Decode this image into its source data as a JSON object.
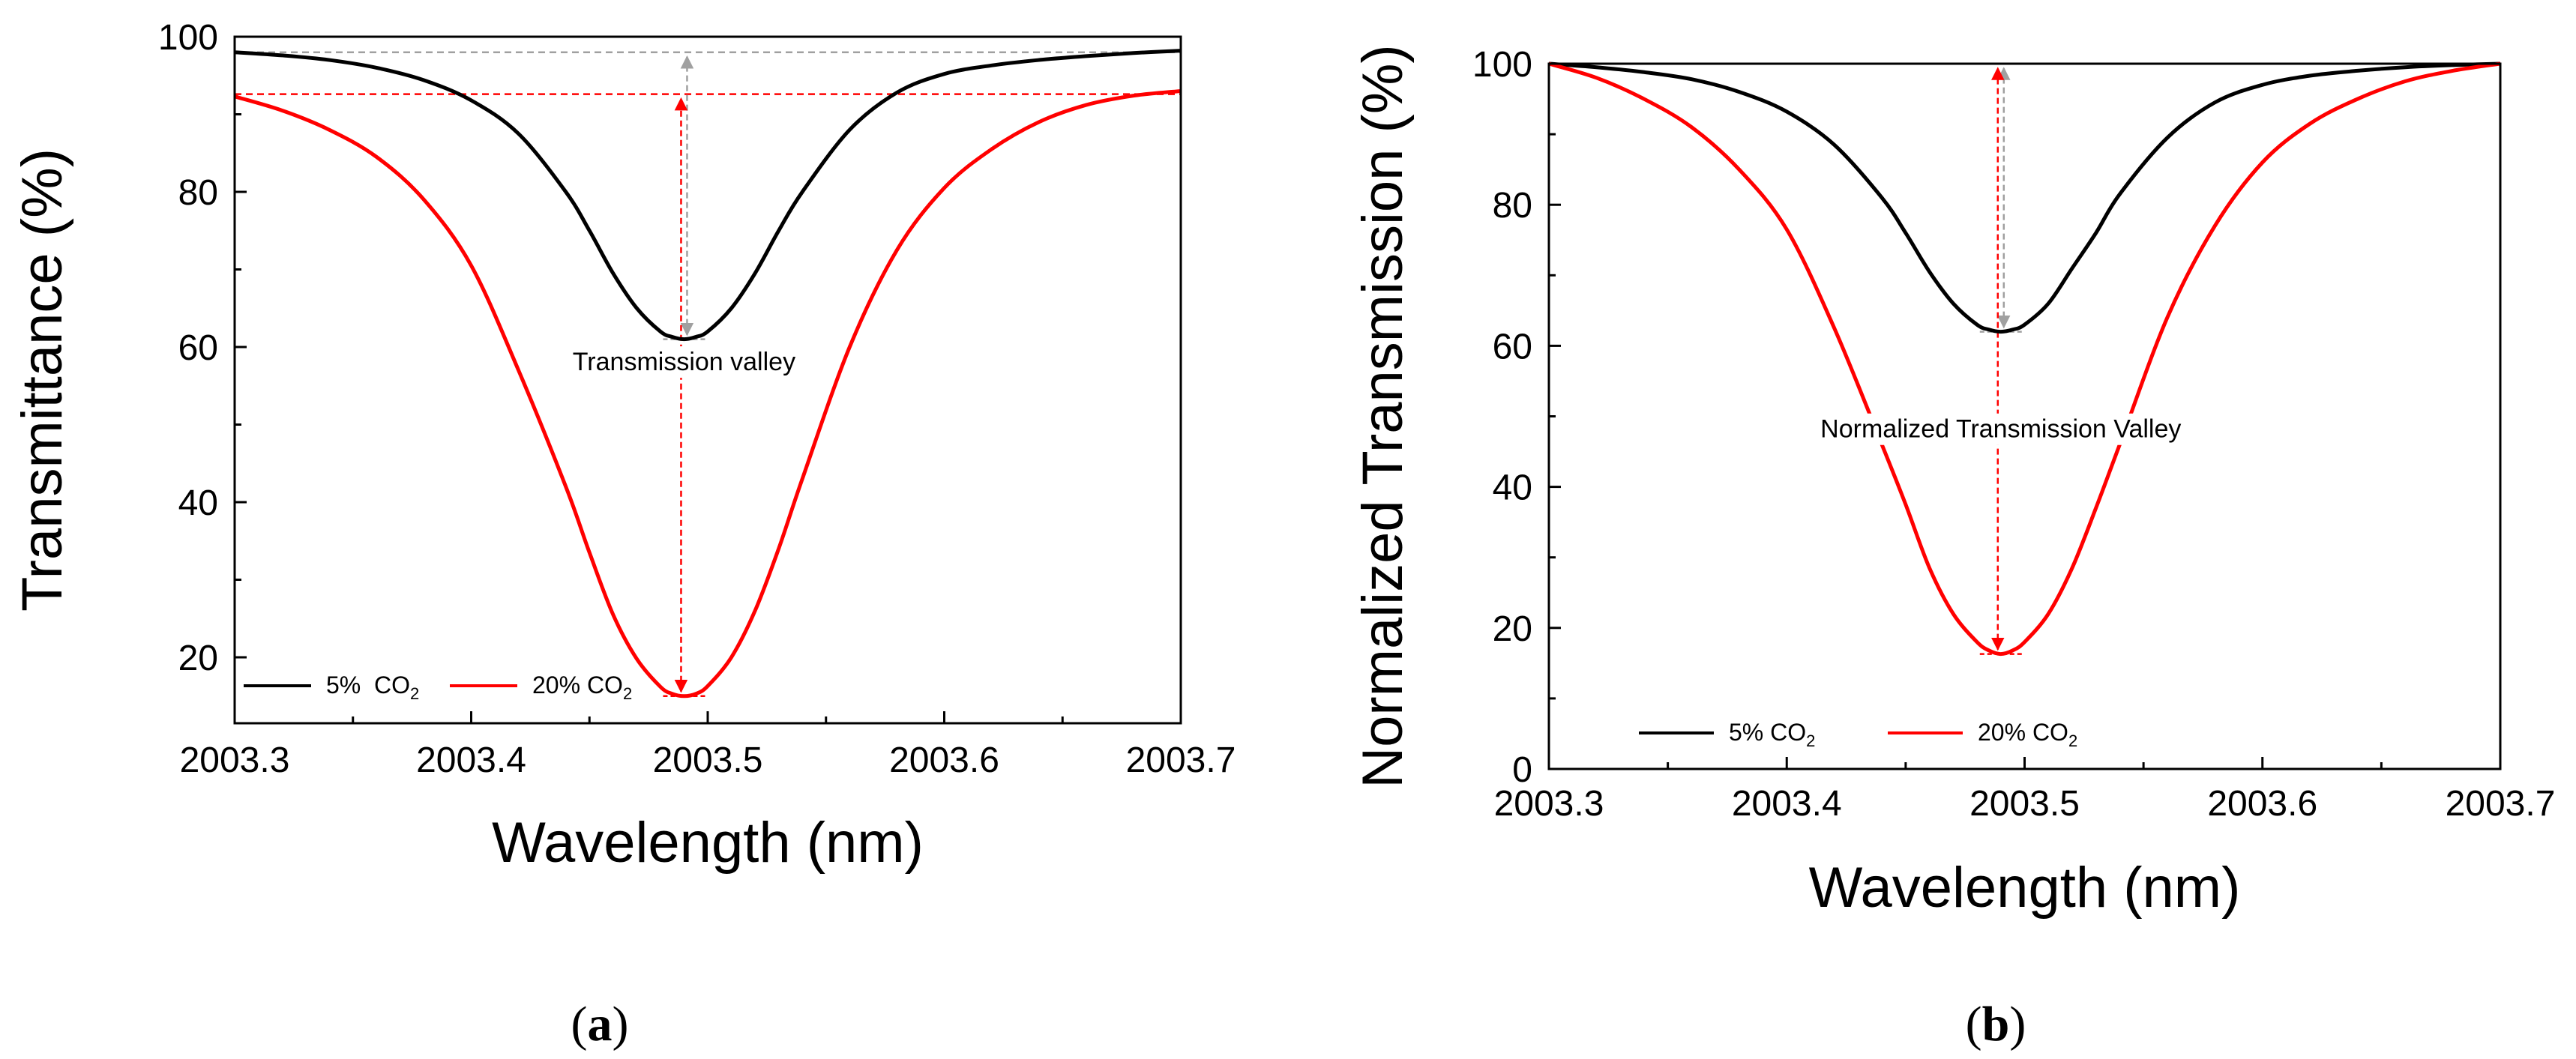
{
  "figure": {
    "panel_labels": [
      "(a)",
      "(b)"
    ],
    "colors": {
      "series_5pct": "#000000",
      "series_20pct": "#ff0000",
      "guide_grey": "#a0a0a0",
      "axis": "#000000"
    }
  },
  "chart_data": [
    {
      "type": "line",
      "panel": "a",
      "title": "",
      "xlabel": "Wavelength (nm)",
      "ylabel": "Transmittance (%)",
      "xlim": [
        2003.3,
        2003.7
      ],
      "ylim": [
        11.5,
        100
      ],
      "xticks": [
        2003.3,
        2003.4,
        2003.5,
        2003.6,
        2003.7
      ],
      "xtick_labels": [
        "2003.3",
        "2003.4",
        "2003.5",
        "2003.6",
        "2003.7"
      ],
      "yticks": [
        20,
        40,
        60,
        80,
        100
      ],
      "ytick_labels": [
        "20",
        "40",
        "60",
        "80",
        "100"
      ],
      "legend": {
        "location": "bottom-left",
        "entries": [
          {
            "label": "5%",
            "sub_prefix": "  CO",
            "sub": "2"
          },
          {
            "label": "20% CO",
            "sub": "2"
          }
        ]
      },
      "annotation": {
        "text": "Transmission valley",
        "x": 2003.49,
        "y": 57
      },
      "series": [
        {
          "name": "5% CO2",
          "color": "#000000",
          "x": [
            2003.3,
            2003.32,
            2003.34,
            2003.36,
            2003.38,
            2003.4,
            2003.42,
            2003.44,
            2003.45,
            2003.46,
            2003.47,
            2003.48,
            2003.485,
            2003.49,
            2003.495,
            2003.5,
            2003.51,
            2003.52,
            2003.53,
            2003.54,
            2003.56,
            2003.58,
            2003.6,
            2003.62,
            2003.64,
            2003.66,
            2003.68,
            2003.7
          ],
          "values": [
            98.0,
            97.6,
            97.0,
            96.0,
            94.4,
            91.8,
            87.5,
            80.0,
            75.0,
            69.5,
            65.0,
            62.0,
            61.3,
            61.0,
            61.3,
            62.0,
            65.0,
            69.5,
            75.0,
            80.0,
            88.0,
            92.8,
            95.2,
            96.3,
            97.0,
            97.5,
            97.9,
            98.2
          ]
        },
        {
          "name": "20% CO2",
          "color": "#ff0000",
          "x": [
            2003.3,
            2003.32,
            2003.34,
            2003.36,
            2003.38,
            2003.4,
            2003.42,
            2003.44,
            2003.45,
            2003.46,
            2003.47,
            2003.48,
            2003.485,
            2003.49,
            2003.495,
            2003.5,
            2003.51,
            2003.52,
            2003.53,
            2003.54,
            2003.56,
            2003.58,
            2003.6,
            2003.62,
            2003.64,
            2003.66,
            2003.68,
            2003.7
          ],
          "values": [
            92.3,
            90.5,
            88.0,
            84.5,
            79.0,
            70.5,
            57.0,
            42.0,
            33.5,
            25.5,
            19.8,
            16.2,
            15.3,
            15.0,
            15.3,
            16.3,
            20.0,
            26.0,
            34.0,
            43.0,
            60.0,
            72.5,
            80.5,
            85.5,
            89.0,
            91.2,
            92.4,
            93.0
          ]
        }
      ],
      "guides": {
        "grey_hline_y": 98.0,
        "red_hline_y": 92.6,
        "arrow_x": 2003.49,
        "grey_arrow_y": [
          61.0,
          98.0
        ],
        "red_arrow_y": [
          15.0,
          92.6
        ]
      }
    },
    {
      "type": "line",
      "panel": "b",
      "title": "",
      "xlabel": "Wavelength (nm)",
      "ylabel": "Normalized Transmission (%)",
      "xlim": [
        2003.3,
        2003.7
      ],
      "ylim": [
        0,
        100
      ],
      "xticks": [
        2003.3,
        2003.4,
        2003.5,
        2003.6,
        2003.7
      ],
      "xtick_labels": [
        "2003.3",
        "2003.4",
        "2003.5",
        "2003.6",
        "2003.7"
      ],
      "yticks": [
        0,
        20,
        40,
        60,
        80,
        100
      ],
      "ytick_labels": [
        "0",
        "20",
        "40",
        "60",
        "80",
        "100"
      ],
      "legend": {
        "location": "bottom-left",
        "entries": [
          {
            "label": "5% CO",
            "sub": "2"
          },
          {
            "label": "20% CO",
            "sub": "2"
          }
        ]
      },
      "annotation": {
        "text": "Normalized Transmission Valley",
        "x": 2003.49,
        "y": 47
      },
      "series": [
        {
          "name": "5% CO2",
          "color": "#000000",
          "x": [
            2003.3,
            2003.32,
            2003.34,
            2003.36,
            2003.38,
            2003.4,
            2003.42,
            2003.44,
            2003.45,
            2003.46,
            2003.47,
            2003.48,
            2003.485,
            2003.49,
            2003.495,
            2003.5,
            2003.51,
            2003.52,
            2003.53,
            2003.54,
            2003.56,
            2003.58,
            2003.6,
            2003.62,
            2003.64,
            2003.66,
            2003.68,
            2003.7
          ],
          "values": [
            100.0,
            99.5,
            98.8,
            97.8,
            96.0,
            93.2,
            88.5,
            81.0,
            76.0,
            70.5,
            66.0,
            63.0,
            62.3,
            62.0,
            62.3,
            63.0,
            66.0,
            71.0,
            76.0,
            81.5,
            89.5,
            94.5,
            97.0,
            98.3,
            99.0,
            99.5,
            99.8,
            100.0
          ]
        },
        {
          "name": "20% CO2",
          "color": "#ff0000",
          "x": [
            2003.3,
            2003.32,
            2003.34,
            2003.36,
            2003.38,
            2003.4,
            2003.42,
            2003.44,
            2003.45,
            2003.46,
            2003.47,
            2003.48,
            2003.485,
            2003.49,
            2003.495,
            2003.5,
            2003.51,
            2003.52,
            2003.53,
            2003.54,
            2003.56,
            2003.58,
            2003.6,
            2003.62,
            2003.64,
            2003.66,
            2003.68,
            2003.7
          ],
          "values": [
            100.0,
            98.0,
            95.0,
            91.0,
            85.0,
            76.5,
            62.5,
            46.0,
            37.5,
            28.5,
            22.0,
            18.0,
            16.8,
            16.3,
            16.8,
            18.0,
            22.0,
            28.5,
            37.0,
            46.0,
            64.0,
            77.0,
            86.0,
            91.5,
            95.0,
            97.5,
            99.0,
            100.0
          ]
        }
      ],
      "guides": {
        "arrow_x": 2003.49,
        "grey_arrow_y": [
          62.0,
          100.0
        ],
        "red_arrow_y": [
          16.3,
          100.0
        ],
        "red_dash_y": 16.3
      }
    }
  ]
}
